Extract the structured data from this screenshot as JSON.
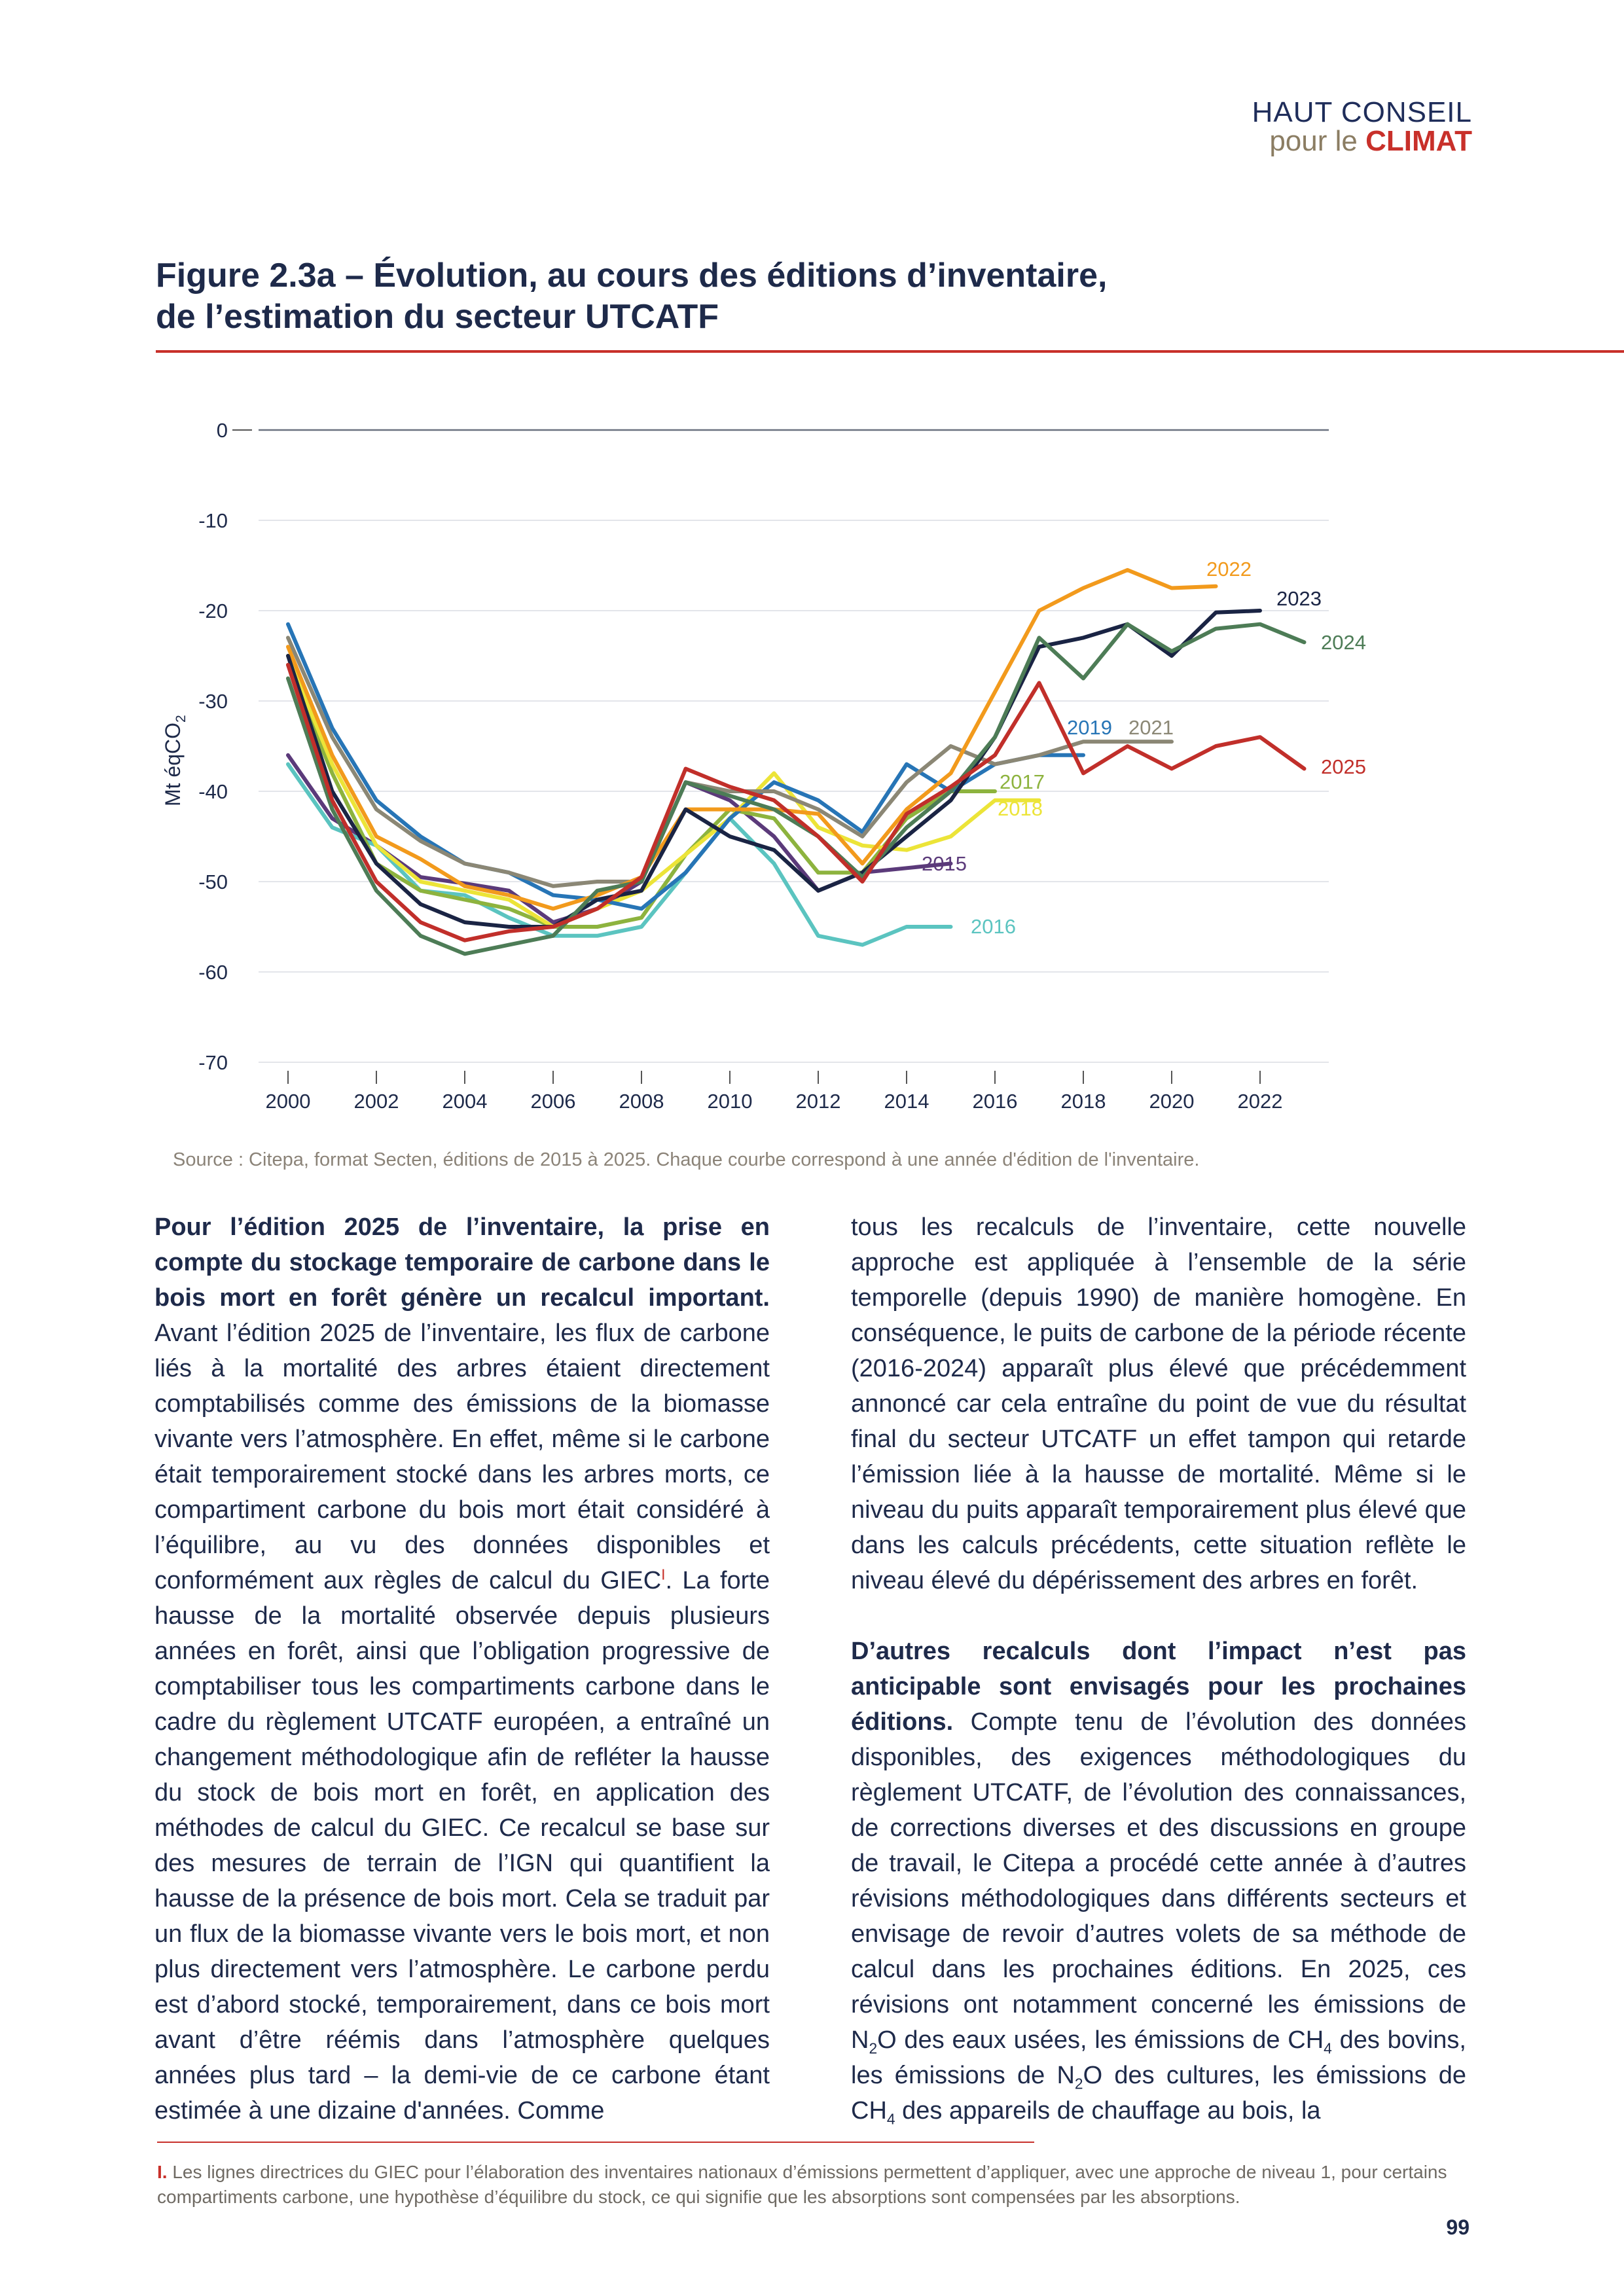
{
  "header": {
    "brand_line1": "HAUT CONSEIL",
    "brand_line2_a": "pour le ",
    "brand_line2_b": "CLIMAT"
  },
  "figure": {
    "title_line1": "Figure 2.3a – Évolution, au cours des éditions d’inventaire,",
    "title_line2": "de l’estimation du secteur UTCATF",
    "source": "Source : Citepa, format Secten, éditions de 2015 à 2025. Chaque courbe correspond à une année d'édition de l'inventaire."
  },
  "chart_data": {
    "type": "line",
    "ylabel": "Mt éqCO",
    "ylabel_sub": "2",
    "ylim": [
      -70,
      0
    ],
    "yticks": [
      0,
      -10,
      -20,
      -30,
      -40,
      -50,
      -60,
      -70
    ],
    "xlim": [
      2000,
      2024
    ],
    "xticks": [
      2000,
      2002,
      2004,
      2006,
      2008,
      2010,
      2012,
      2014,
      2016,
      2018,
      2020,
      2022
    ],
    "grid": true,
    "series": [
      {
        "name": "2015",
        "color": "#5b3a7a",
        "x": [
          2000,
          2001,
          2002,
          2003,
          2004,
          2005,
          2006,
          2007,
          2008,
          2009,
          2010,
          2011,
          2012,
          2013,
          2014,
          2015
        ],
        "values": [
          -36,
          -43,
          -46,
          -49.5,
          -50.2,
          -51,
          -54.5,
          -53,
          -50,
          -39,
          -41,
          -45,
          -51,
          -49,
          -48.5,
          -48
        ]
      },
      {
        "name": "2016",
        "color": "#5bc4c0",
        "x": [
          2000,
          2001,
          2002,
          2003,
          2004,
          2005,
          2006,
          2007,
          2008,
          2009,
          2010,
          2011,
          2012,
          2013,
          2014,
          2015
        ],
        "values": [
          -37,
          -44,
          -46,
          -51,
          -51.5,
          -54,
          -56,
          -56,
          -55,
          -49,
          -43,
          -48,
          -56,
          -57,
          -55,
          -55
        ]
      },
      {
        "name": "2017",
        "color": "#8db33e",
        "x": [
          2000,
          2001,
          2002,
          2003,
          2004,
          2005,
          2006,
          2007,
          2008,
          2009,
          2010,
          2011,
          2012,
          2013,
          2014,
          2015,
          2016
        ],
        "values": [
          -26,
          -38,
          -48,
          -51,
          -52,
          -53,
          -55,
          -55,
          -54,
          -47,
          -42,
          -43,
          -49,
          -49,
          -43,
          -40,
          -40
        ]
      },
      {
        "name": "2018",
        "color": "#ece438",
        "x": [
          2000,
          2001,
          2002,
          2003,
          2004,
          2005,
          2006,
          2007,
          2008,
          2009,
          2010,
          2011,
          2012,
          2013,
          2014,
          2015,
          2016,
          2017
        ],
        "values": [
          -25,
          -37,
          -46,
          -50,
          -51,
          -52,
          -55,
          -53,
          -51,
          -47,
          -43,
          -38,
          -44,
          -46,
          -46.5,
          -45,
          -41,
          -41
        ]
      },
      {
        "name": "2019",
        "color": "#2775b6",
        "x": [
          2000,
          2001,
          2002,
          2003,
          2004,
          2005,
          2006,
          2007,
          2008,
          2009,
          2010,
          2011,
          2012,
          2013,
          2014,
          2015,
          2016,
          2017,
          2018
        ],
        "values": [
          -21.5,
          -33,
          -41,
          -45,
          -48,
          -49,
          -51.5,
          -52,
          -53,
          -49,
          -43,
          -39,
          -41,
          -44.5,
          -37,
          -40,
          -37,
          -36,
          -36
        ]
      },
      {
        "name": "2021",
        "color": "#8b8775",
        "x": [
          2000,
          2001,
          2002,
          2003,
          2004,
          2005,
          2006,
          2007,
          2008,
          2009,
          2010,
          2011,
          2012,
          2013,
          2014,
          2015,
          2016,
          2017,
          2018,
          2019,
          2020
        ],
        "values": [
          -23,
          -34,
          -42,
          -45.5,
          -48,
          -49,
          -50.5,
          -50,
          -50,
          -39,
          -40,
          -40,
          -42,
          -45,
          -39,
          -35,
          -37,
          -36,
          -34.5,
          -34.5,
          -34.5
        ]
      },
      {
        "name": "2022",
        "color": "#f29a1c",
        "x": [
          2000,
          2001,
          2002,
          2003,
          2004,
          2005,
          2006,
          2007,
          2008,
          2009,
          2010,
          2011,
          2012,
          2013,
          2014,
          2015,
          2016,
          2017,
          2018,
          2019,
          2020,
          2021
        ],
        "values": [
          -24,
          -36,
          -45,
          -47.5,
          -50.5,
          -51.5,
          -53,
          -51.5,
          -49.5,
          -42,
          -42,
          -42,
          -42.5,
          -48,
          -42,
          -38,
          -29,
          -20,
          -17.5,
          -15.5,
          -17.5,
          -17.3
        ]
      },
      {
        "name": "2023",
        "color": "#1a2444",
        "x": [
          2000,
          2001,
          2002,
          2003,
          2004,
          2005,
          2006,
          2007,
          2008,
          2009,
          2010,
          2011,
          2012,
          2013,
          2014,
          2015,
          2016,
          2017,
          2018,
          2019,
          2020,
          2021,
          2022
        ],
        "values": [
          -25,
          -40,
          -48,
          -52.5,
          -54.5,
          -55,
          -55,
          -52,
          -51,
          -42,
          -45,
          -46.5,
          -51,
          -49,
          -45,
          -41,
          -34,
          -24,
          -23,
          -21.5,
          -25,
          -20.2,
          -20
        ]
      },
      {
        "name": "2024",
        "color": "#4d7c56",
        "x": [
          2000,
          2001,
          2002,
          2003,
          2004,
          2005,
          2006,
          2007,
          2008,
          2009,
          2010,
          2011,
          2012,
          2013,
          2014,
          2015,
          2016,
          2017,
          2018,
          2019,
          2020,
          2021,
          2022,
          2023
        ],
        "values": [
          -27.5,
          -42,
          -51,
          -56,
          -58,
          -57,
          -56,
          -51,
          -50,
          -39,
          -40.5,
          -42,
          -45,
          -49.5,
          -44,
          -40,
          -34,
          -23,
          -27.5,
          -21.5,
          -24.5,
          -22,
          -21.5,
          -23.5
        ]
      },
      {
        "name": "2025",
        "color": "#c12f2a",
        "x": [
          2000,
          2001,
          2002,
          2003,
          2004,
          2005,
          2006,
          2007,
          2008,
          2009,
          2010,
          2011,
          2012,
          2013,
          2014,
          2015,
          2016,
          2017,
          2018,
          2019,
          2020,
          2021,
          2022,
          2023
        ],
        "values": [
          -26,
          -41,
          -50,
          -54.5,
          -56.5,
          -55.5,
          -55,
          -53,
          -49.5,
          -37.5,
          -39.5,
          -41,
          -45,
          -50,
          -42.5,
          -39.5,
          -36,
          -28,
          -38,
          -35,
          -37.5,
          -35,
          -34,
          -37.5
        ]
      }
    ]
  },
  "body": {
    "left_lead": "Pour l’édition 2025 de l’inventaire, la prise en compte du stockage temporaire de carbone dans le bois mort en forêt génère un recalcul important.",
    "left_text_a": " Avant l’édition 2025 de l’inventaire, les flux de carbone liés à la mortalité des arbres étaient directement comptabilisés comme des émissions de la biomasse vivante vers l’atmosphère. En effet, même si le carbone était temporairement stocké dans les arbres morts, ce compartiment carbone du bois mort était considéré à l’équilibre, au vu des données disponibles et conformément aux règles de calcul du GIEC",
    "left_note_mark": "I",
    "left_text_b": ". La forte hausse de la mortalité observée depuis plusieurs années en forêt, ainsi que l’obligation progressive de comptabiliser tous les compartiments carbone dans le cadre du règlement UTCATF européen, a entraîné un changement méthodologique afin de refléter la hausse du stock de bois mort en forêt, en application des méthodes de calcul du GIEC. Ce recalcul se base sur des mesures de terrain de l’IGN qui quantifient la hausse de la présence de bois mort. Cela se traduit par un flux de la biomasse vivante vers le bois mort, et non plus directement vers l’atmosphère. Le carbone perdu est d’abord stocké, temporairement, dans ce bois mort avant d’être réémis dans l’atmosphère quelques années plus tard – la demi-vie de ce carbone étant estimée à une dizaine d'années. Comme",
    "right_p1": "tous les recalculs de l’inventaire, cette nouvelle approche est appliquée à l’ensemble de la série temporelle (depuis 1990) de manière homogène. En conséquence, le puits de carbone de la période récente (2016-2024) apparaît plus élevé que précédemment annoncé car cela entraîne du point de vue du résultat final du secteur UTCATF un effet tampon qui retarde l’émission liée à la hausse de mortalité. Même si le niveau du puits apparaît temporairement plus élevé que dans les calculs précédents, cette situation reflète le niveau élevé du dépérissement des arbres en forêt.",
    "right_lead": "D’autres recalculs dont l’impact n’est pas anticipable sont envisagés pour les prochaines éditions.",
    "right_p2a": " Compte tenu de l’évolution des données disponibles, des exigences méthodologiques du règlement UTCATF, de l’évolution des connaissances, de corrections diverses et des discussions en groupe de travail, le Citepa a procédé cette année à d’autres révisions méthodologiques dans différents secteurs et envisage de revoir d’autres volets de sa méthode de calcul dans les prochaines éditions. En 2025, ces révisions ont notamment concerné les émissions de N",
    "right_sub1": "2",
    "right_p2b": "O des eaux usées, les émissions de CH",
    "right_sub2": "4",
    "right_p2c": " des bovins, les émissions de N",
    "right_sub3": "2",
    "right_p2d": "O des cultures, les émissions de CH",
    "right_sub4": "4",
    "right_p2e": " des appareils de chauffage au bois, la"
  },
  "footnote": {
    "mark": "I.",
    "text": " Les lignes directrices du GIEC pour l’élaboration des inventaires nationaux d’émissions permettent d’appliquer, avec une approche de niveau 1, pour certains compartiments carbone, une hypothèse d’équilibre du stock, ce qui signifie que les absorptions sont compensées par les absorptions."
  },
  "page_number": "99"
}
